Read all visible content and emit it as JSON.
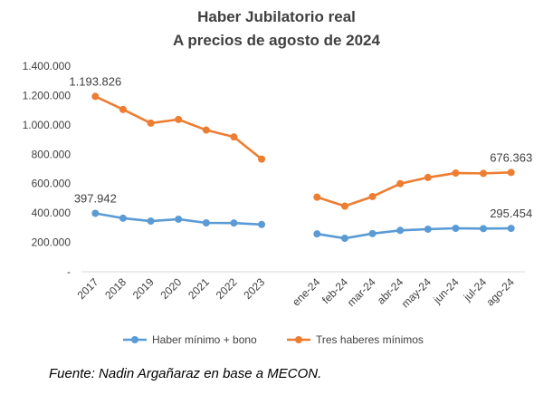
{
  "chart_data": {
    "type": "line",
    "title": "Haber Jubilatorio real",
    "subtitle": "A precios de agosto de 2024",
    "categories": [
      "2017",
      "2018",
      "2019",
      "2020",
      "2021",
      "2022",
      "2023",
      "",
      "ene-24",
      "feb-24",
      "mar-24",
      "abr-24",
      "may-24",
      "jun-24",
      "jul-24",
      "ago-24"
    ],
    "series": [
      {
        "name": "Haber mínimo + bono",
        "color": "#5B9BD5",
        "values": [
          397942,
          365000,
          345000,
          358000,
          333000,
          332000,
          322000,
          null,
          258000,
          228000,
          260000,
          282000,
          290000,
          296000,
          294000,
          295454
        ]
      },
      {
        "name": "Tres haberes mínimos",
        "color": "#ED7D31",
        "values": [
          1193826,
          1105000,
          1012000,
          1037000,
          965000,
          918000,
          767000,
          null,
          508000,
          447000,
          512000,
          600000,
          642000,
          672000,
          670000,
          676363
        ]
      }
    ],
    "ylim": [
      0,
      1400000
    ],
    "yticks": [
      0,
      200000,
      400000,
      600000,
      800000,
      1000000,
      1200000,
      1400000
    ],
    "ytick_labels": [
      "-",
      "200.000",
      "400.000",
      "600.000",
      "800.000",
      "1.000.000",
      "1.200.000",
      "1.400.000"
    ],
    "data_labels": [
      {
        "series": 1,
        "index": 0,
        "text": "1.193.826"
      },
      {
        "series": 0,
        "index": 0,
        "text": "397.942"
      },
      {
        "series": 1,
        "index": 15,
        "text": "676.363"
      },
      {
        "series": 0,
        "index": 15,
        "text": "295.454"
      }
    ],
    "legend_position": "bottom",
    "grid": false,
    "source": "Fuente: Nadin Argañaraz en base a MECON."
  }
}
